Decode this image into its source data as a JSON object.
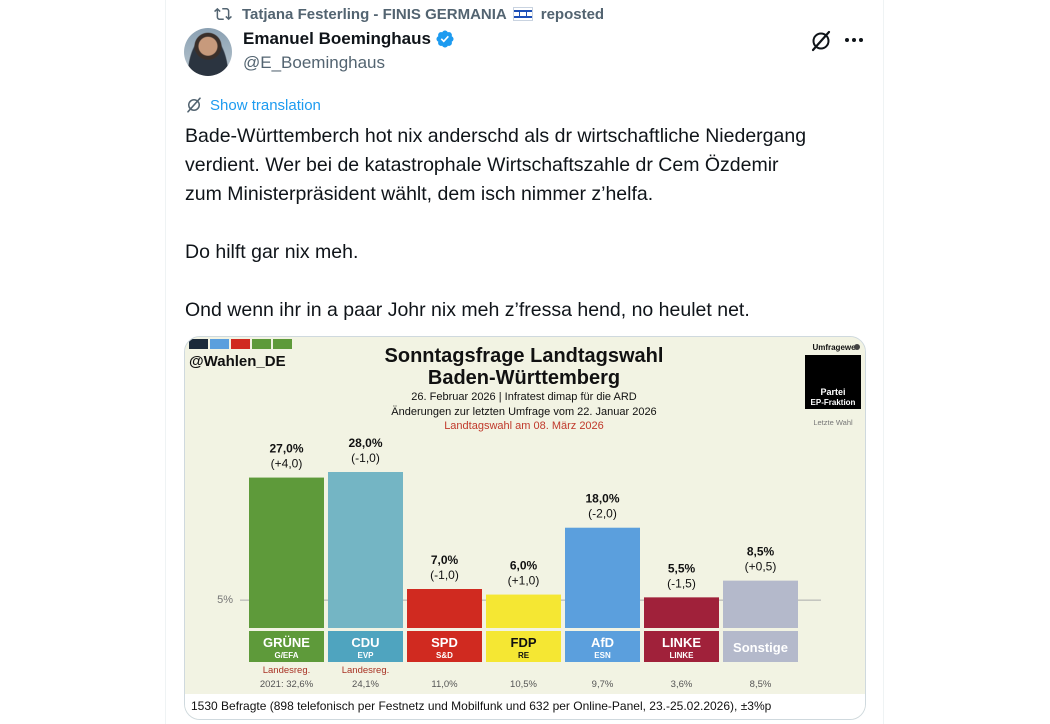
{
  "repost": {
    "text": "Tatjana Festerling - FINIS GERMANIA",
    "suffix": "reposted"
  },
  "author": {
    "name": "Emanuel Boeminghaus",
    "handle": "@E_Boeminghaus"
  },
  "translate_label": "Show translation",
  "tweet": {
    "line1": "Bade-Württemberch hot nix anderschd als dr wirtschaftliche Niedergang",
    "line2": "verdient. Wer bei de katastrophale Wirtschaftszahle dr Cem Özdemir",
    "line3": "zum Ministerpräsident wählt, dem isch nimmer z’helfa.",
    "line4": "Do hilft gar nix meh.",
    "line5": "Ond wenn ihr in a paar Johr nix meh z’fressa hend, no heulet net."
  },
  "colors": {
    "link": "#1d9bf0",
    "verified": "#1d9bf0"
  },
  "chart_data": {
    "type": "bar",
    "source_tag": "@Wahlen_DE",
    "title": "Sonntagsfrage Landtagswahl",
    "title2": "Baden-Württemberg",
    "date_line": "26. Februar 2026 | Infratest dimap für die ARD",
    "change_line": "Änderungen zur letzten Umfrage vom 22. Januar 2026",
    "election_line": "Landtagswahl am 08. März 2026",
    "legend_title": "Umfragewe",
    "legend_box": [
      "Partei",
      "EP-Fraktion"
    ],
    "legend_last": "Letzte Wahl",
    "threshold_label": "5%",
    "threshold": 5,
    "ylim": [
      0,
      30
    ],
    "categories": [
      "GRÜNE",
      "CDU",
      "SPD",
      "FDP",
      "AfD",
      "LINKE",
      "Sonstige"
    ],
    "subgroups": [
      "G/EFA",
      "EVP",
      "S&D",
      "RE",
      "ESN",
      "LINKE",
      ""
    ],
    "values": [
      27.0,
      28.0,
      7.0,
      6.0,
      18.0,
      5.5,
      8.5
    ],
    "value_labels": [
      "27,0%",
      "28,0%",
      "7,0%",
      "6,0%",
      "18,0%",
      "5,5%",
      "8,5%"
    ],
    "change_labels": [
      "(+4,0)",
      "(-1,0)",
      "(-1,0)",
      "(+1,0)",
      "(-2,0)",
      "(-1,5)",
      "(+0,5)"
    ],
    "last_election": [
      "32,6%",
      "24,1%",
      "11,0%",
      "10,5%",
      "9,7%",
      "3,6%",
      "8,5%"
    ],
    "last_election_prefix": [
      "2021: ",
      "",
      "",
      "",
      "",
      "",
      ""
    ],
    "government_label": "Landesreg.",
    "government": [
      true,
      true,
      false,
      false,
      false,
      false,
      false
    ],
    "bar_colors": [
      "#5e9a3a",
      "#74b5c4",
      "#d02a20",
      "#f5e733",
      "#5b9fdd",
      "#a0213a",
      "#b4b9cb"
    ],
    "label_colors": [
      "#5e9a3a",
      "#4fa4bf",
      "#d02a20",
      "#f5e733",
      "#5b9fdd",
      "#a0213a",
      "#b4b9cb"
    ],
    "footer": "1530 Befragte (898 telefonisch per Festnetz und Mobilfunk und 632 per Online-Panel, 23.-25.02.2026), ±3%p"
  }
}
